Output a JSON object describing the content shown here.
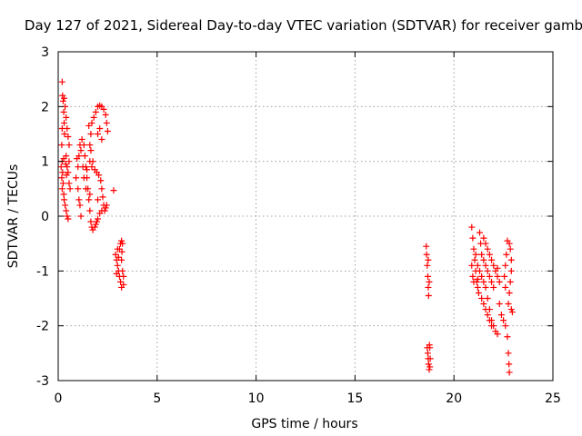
{
  "chart_data": {
    "type": "scatter",
    "title": "Day 127 of 2021, Sidereal Day-to-day VTEC variation (SDTVAR) for receiver gamb",
    "xlabel": "GPS time / hours",
    "ylabel": "SDTVAR / TECUs",
    "xlim": [
      0,
      25
    ],
    "ylim": [
      -3,
      3
    ],
    "xticks": [
      "0",
      "5",
      "10",
      "15",
      "20",
      "25"
    ],
    "yticks": [
      "-3",
      "-2",
      "-1",
      "0",
      "1",
      "2",
      "3"
    ],
    "grid": true,
    "marker": "+",
    "color": "#ff0000",
    "series": [
      {
        "points": [
          [
            0.2,
            2.45
          ],
          [
            0.22,
            2.2
          ],
          [
            0.25,
            2.1
          ],
          [
            0.28,
            1.9
          ],
          [
            0.3,
            1.7
          ],
          [
            0.32,
            1.5
          ],
          [
            0.2,
            1.6
          ],
          [
            0.18,
            1.3
          ],
          [
            0.2,
            1.0
          ],
          [
            0.22,
            0.8
          ],
          [
            0.25,
            0.6
          ],
          [
            0.28,
            0.4
          ],
          [
            0.3,
            0.3
          ],
          [
            0.35,
            0.2
          ],
          [
            0.4,
            0.1
          ],
          [
            0.45,
            0.0
          ],
          [
            0.5,
            -0.05
          ],
          [
            0.15,
            0.9
          ],
          [
            0.18,
            0.7
          ],
          [
            0.2,
            0.5
          ],
          [
            0.3,
            2.15
          ],
          [
            0.35,
            2.0
          ],
          [
            0.4,
            1.8
          ],
          [
            0.45,
            1.6
          ],
          [
            0.5,
            1.45
          ],
          [
            0.55,
            1.3
          ],
          [
            0.55,
            1.0
          ],
          [
            0.5,
            0.8
          ],
          [
            0.45,
            0.9
          ],
          [
            0.4,
            1.1
          ],
          [
            0.55,
            0.6
          ],
          [
            0.6,
            0.5
          ],
          [
            0.38,
            0.95
          ],
          [
            0.42,
            0.75
          ],
          [
            0.28,
            1.05
          ],
          [
            0.9,
            0.7
          ],
          [
            1.0,
            0.9
          ],
          [
            1.05,
            1.1
          ],
          [
            1.1,
            1.3
          ],
          [
            1.2,
            1.4
          ],
          [
            1.3,
            1.3
          ],
          [
            1.35,
            1.1
          ],
          [
            1.4,
            0.9
          ],
          [
            1.45,
            0.7
          ],
          [
            1.5,
            0.5
          ],
          [
            1.55,
            0.3
          ],
          [
            1.6,
            0.1
          ],
          [
            1.65,
            -0.1
          ],
          [
            1.7,
            -0.2
          ],
          [
            1.0,
            0.5
          ],
          [
            1.05,
            0.3
          ],
          [
            1.1,
            0.2
          ],
          [
            1.15,
            0.0
          ],
          [
            1.25,
            0.9
          ],
          [
            1.3,
            0.7
          ],
          [
            1.4,
            0.5
          ],
          [
            1.6,
            0.4
          ],
          [
            1.75,
            -0.25
          ],
          [
            1.85,
            -0.2
          ],
          [
            1.95,
            -0.1
          ],
          [
            0.95,
            1.05
          ],
          [
            1.15,
            1.2
          ],
          [
            1.45,
            0.85
          ],
          [
            1.6,
            1.0
          ],
          [
            1.6,
            1.3
          ],
          [
            1.65,
            1.5
          ],
          [
            1.7,
            1.7
          ],
          [
            1.8,
            1.8
          ],
          [
            1.9,
            1.9
          ],
          [
            2.0,
            2.0
          ],
          [
            2.1,
            2.02
          ],
          [
            2.2,
            2.0
          ],
          [
            2.3,
            1.95
          ],
          [
            2.4,
            1.85
          ],
          [
            2.45,
            1.7
          ],
          [
            2.5,
            1.55
          ],
          [
            1.55,
            1.65
          ],
          [
            1.65,
            1.2
          ],
          [
            1.75,
            1.0
          ],
          [
            1.85,
            0.85
          ],
          [
            1.95,
            0.8
          ],
          [
            2.05,
            0.75
          ],
          [
            2.15,
            0.65
          ],
          [
            2.2,
            0.5
          ],
          [
            2.25,
            0.35
          ],
          [
            2.3,
            0.2
          ],
          [
            2.35,
            0.1
          ],
          [
            2.4,
            0.15
          ],
          [
            2.45,
            0.2
          ],
          [
            1.9,
            -0.15
          ],
          [
            2.0,
            -0.05
          ],
          [
            2.1,
            0.05
          ],
          [
            2.2,
            0.1
          ],
          [
            2.0,
            1.5
          ],
          [
            2.1,
            1.6
          ],
          [
            2.2,
            1.4
          ],
          [
            1.7,
            0.9
          ],
          [
            2.0,
            0.3
          ],
          [
            2.8,
            0.47
          ],
          [
            2.9,
            -0.7
          ],
          [
            2.95,
            -0.8
          ],
          [
            3.0,
            -0.9
          ],
          [
            3.05,
            -1.0
          ],
          [
            3.1,
            -1.1
          ],
          [
            3.15,
            -1.2
          ],
          [
            3.2,
            -1.3
          ],
          [
            3.1,
            -0.6
          ],
          [
            3.15,
            -0.5
          ],
          [
            3.2,
            -0.45
          ],
          [
            3.25,
            -0.5
          ],
          [
            3.2,
            -0.8
          ],
          [
            3.25,
            -1.0
          ],
          [
            3.3,
            -1.1
          ],
          [
            3.0,
            -0.6
          ],
          [
            2.95,
            -1.05
          ],
          [
            3.05,
            -0.75
          ],
          [
            3.22,
            -0.65
          ],
          [
            3.3,
            -1.25
          ],
          [
            18.6,
            -0.55
          ],
          [
            18.62,
            -0.7
          ],
          [
            18.65,
            -0.9
          ],
          [
            18.68,
            -1.1
          ],
          [
            18.7,
            -1.3
          ],
          [
            18.72,
            -1.45
          ],
          [
            18.75,
            -1.2
          ],
          [
            18.7,
            -0.8
          ],
          [
            18.65,
            -2.4
          ],
          [
            18.68,
            -2.5
          ],
          [
            18.7,
            -2.6
          ],
          [
            18.72,
            -2.7
          ],
          [
            18.75,
            -2.8
          ],
          [
            18.78,
            -2.75
          ],
          [
            18.8,
            -2.6
          ],
          [
            18.78,
            -2.4
          ],
          [
            18.76,
            -2.35
          ],
          [
            20.9,
            -0.2
          ],
          [
            20.95,
            -0.4
          ],
          [
            21.0,
            -0.6
          ],
          [
            21.05,
            -0.8
          ],
          [
            21.1,
            -1.0
          ],
          [
            21.15,
            -1.2
          ],
          [
            21.2,
            -1.3
          ],
          [
            21.25,
            -1.4
          ],
          [
            20.9,
            -0.9
          ],
          [
            20.95,
            -1.1
          ],
          [
            21.0,
            -1.2
          ],
          [
            21.1,
            -0.7
          ],
          [
            21.2,
            -0.9
          ],
          [
            21.3,
            -1.0
          ],
          [
            21.4,
            -1.1
          ],
          [
            21.5,
            -1.2
          ],
          [
            21.6,
            -1.3
          ],
          [
            21.7,
            -1.5
          ],
          [
            21.8,
            -1.7
          ],
          [
            21.9,
            -1.9
          ],
          [
            22.0,
            -2.0
          ],
          [
            22.1,
            -2.1
          ],
          [
            22.2,
            -2.15
          ],
          [
            21.3,
            -0.3
          ],
          [
            21.35,
            -0.5
          ],
          [
            21.4,
            -0.7
          ],
          [
            21.5,
            -0.8
          ],
          [
            21.6,
            -0.9
          ],
          [
            21.7,
            -1.0
          ],
          [
            21.8,
            -1.1
          ],
          [
            21.9,
            -1.2
          ],
          [
            21.5,
            -0.4
          ],
          [
            21.6,
            -0.5
          ],
          [
            21.7,
            -0.6
          ],
          [
            21.8,
            -0.7
          ],
          [
            21.9,
            -0.8
          ],
          [
            22.0,
            -0.9
          ],
          [
            22.1,
            -1.0
          ],
          [
            22.2,
            -1.1
          ],
          [
            22.3,
            -1.2
          ],
          [
            21.4,
            -1.5
          ],
          [
            21.5,
            -1.6
          ],
          [
            21.6,
            -1.7
          ],
          [
            21.7,
            -1.8
          ],
          [
            21.8,
            -1.9
          ],
          [
            21.9,
            -2.0
          ],
          [
            22.3,
            -1.6
          ],
          [
            22.4,
            -1.8
          ],
          [
            22.5,
            -1.9
          ],
          [
            22.6,
            -2.0
          ],
          [
            22.7,
            -2.2
          ],
          [
            22.75,
            -2.5
          ],
          [
            22.78,
            -2.7
          ],
          [
            22.8,
            -2.85
          ],
          [
            22.8,
            -0.5
          ],
          [
            22.85,
            -0.6
          ],
          [
            22.9,
            -0.8
          ],
          [
            22.9,
            -1.0
          ],
          [
            22.85,
            -1.2
          ],
          [
            22.8,
            -1.4
          ],
          [
            22.75,
            -1.6
          ],
          [
            22.7,
            -0.45
          ],
          [
            22.65,
            -0.7
          ],
          [
            22.6,
            -0.9
          ],
          [
            22.55,
            -1.1
          ],
          [
            22.6,
            -1.3
          ],
          [
            22.9,
            -1.7
          ],
          [
            22.95,
            -1.75
          ],
          [
            22.2,
            -0.95
          ],
          [
            22.0,
            -1.3
          ],
          [
            21.2,
            -1.15
          ]
        ]
      }
    ]
  }
}
